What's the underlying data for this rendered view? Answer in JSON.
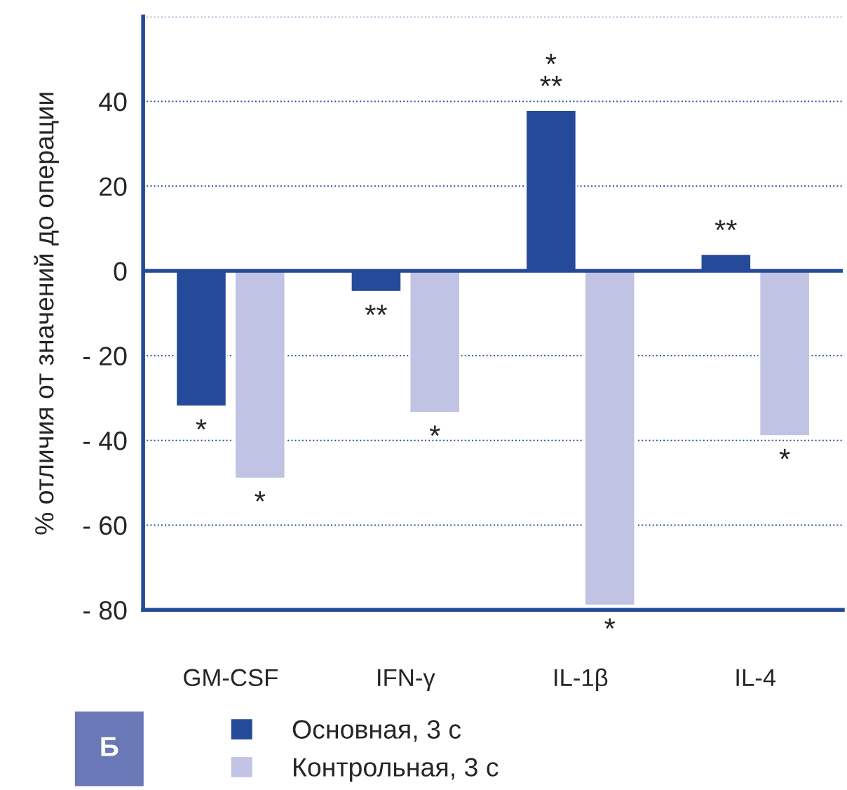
{
  "chart_data": {
    "type": "bar",
    "ylabel": "% отличия от значений до операции",
    "categories": [
      "GM-CSF",
      "IFN-γ",
      "IL-1β",
      "IL-4"
    ],
    "series": [
      {
        "name": "Основная, 3 с",
        "color": "#264a9a",
        "values": [
          -32,
          -5,
          38,
          4
        ]
      },
      {
        "name": "Контрольная, 3 с",
        "color": "#c0c3e3",
        "values": [
          -49,
          -33.5,
          -79,
          -39
        ]
      }
    ],
    "ylim": [
      -80,
      60
    ],
    "yticks": [
      {
        "value": -80,
        "label": "- 80"
      },
      {
        "value": -60,
        "label": "- 60"
      },
      {
        "value": -40,
        "label": "- 40"
      },
      {
        "value": -20,
        "label": "- 20"
      },
      0,
      20,
      40,
      {
        "value": 60,
        "label": null
      }
    ],
    "grid": "y",
    "legend": "bottom",
    "ref_lines": [
      {
        "axis": "y",
        "value": 0,
        "color": "#264a9a"
      }
    ],
    "annotations": [
      {
        "text": "*",
        "x": "GM-CSF",
        "y": -32
      },
      {
        "text": "*",
        "x": "GM-CSF",
        "y": -49
      },
      {
        "text": "**",
        "x": "IFN-γ",
        "y": -5
      },
      {
        "text": "*",
        "x": "IFN-γ",
        "y": -33.5
      },
      {
        "text": "*\n**",
        "x": "IL-1β",
        "y": 38
      },
      {
        "text": "*",
        "x": "IL-1β",
        "y": -79
      },
      {
        "text": "**",
        "x": "IL-4",
        "y": 4
      },
      {
        "text": "*",
        "x": "IL-4",
        "y": -39
      },
      "Б"
    ]
  }
}
